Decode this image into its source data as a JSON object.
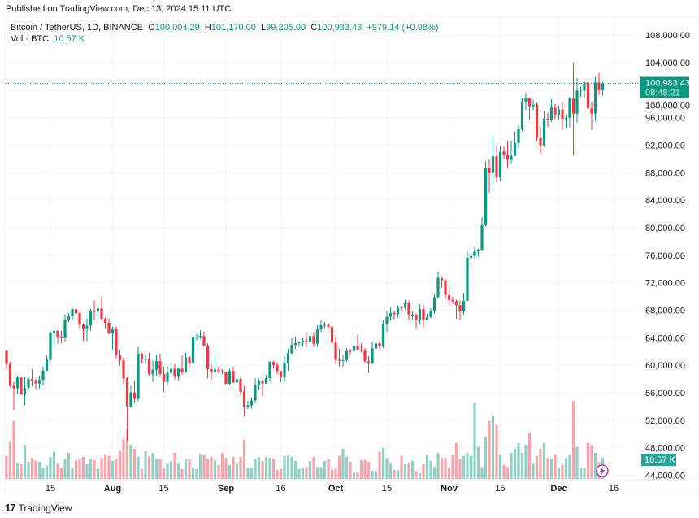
{
  "published": "Published on TradingView.com, Dec 13, 2024 15:11 UTC",
  "legend": {
    "symbol": "Bitcoin / TetherUS, 1D, BINANCE",
    "o_label": "O",
    "o": "100,004.29",
    "h_label": "H",
    "h": "101,170.00",
    "l_label": "L",
    "l": "99,205.00",
    "c_label": "C",
    "c": "100,983.43",
    "change": "+979.14 (+0.98%)",
    "vol_label": "Vol · BTC",
    "vol": "10.57 K"
  },
  "price_label": {
    "price": "100,983.43",
    "countdown": "08:48:21"
  },
  "volume_label": "10.57 K",
  "footer_logo": "TradingView",
  "colors": {
    "up": "#089981",
    "down": "#f23645"
  },
  "icons": {
    "lightning": "lightning-icon",
    "logo": "tradingview-logo-icon"
  },
  "chart_data": {
    "type": "candlestick",
    "interval": "1D",
    "date_range": [
      "2024-07-03",
      "2024-12-13"
    ],
    "ylim": [
      44000,
      108000
    ],
    "yticks": [
      "108,000.00",
      "104,000.00",
      "100,000.00",
      "96,000.00",
      "92,000.00",
      "88,000.00",
      "84,000.00",
      "80,000.00",
      "76,000.00",
      "72,000.00",
      "68,000.00",
      "64,000.00",
      "60,000.00",
      "56,000.00",
      "52,000.00",
      "48,000.00",
      "44,000.00"
    ],
    "xticks": [
      {
        "label": "15",
        "date": "2024-07-15"
      },
      {
        "label": "Aug",
        "date": "2024-08-01"
      },
      {
        "label": "15",
        "date": "2024-08-15"
      },
      {
        "label": "Sep",
        "date": "2024-09-01"
      },
      {
        "label": "16",
        "date": "2024-09-16"
      },
      {
        "label": "Oct",
        "date": "2024-10-01"
      },
      {
        "label": "15",
        "date": "2024-10-15"
      },
      {
        "label": "Nov",
        "date": "2024-11-01"
      },
      {
        "label": "15",
        "date": "2024-11-15"
      },
      {
        "label": "Dec",
        "date": "2024-12-01"
      },
      {
        "label": "16",
        "date": "2024-12-16"
      }
    ],
    "first_open": 62100,
    "close": [
      60200,
      57000,
      56650,
      58200,
      55850,
      56700,
      57980,
      57700,
      57350,
      57900,
      59200,
      60800,
      64700,
      65000,
      64100,
      63950,
      66650,
      67150,
      68150,
      67550,
      65900,
      65350,
      65750,
      67900,
      67800,
      68250,
      66750,
      66180,
      64620,
      65350,
      61500,
      60700,
      58100,
      54000,
      56030,
      55120,
      61700,
      60880,
      60940,
      58710,
      59350,
      60600,
      58740,
      57560,
      58870,
      59480,
      58440,
      59490,
      59000,
      61160,
      60380,
      64090,
      64180,
      64250,
      62830,
      59420,
      59030,
      59380,
      59120,
      58970,
      57300,
      59130,
      57480,
      57970,
      56160,
      53960,
      54160,
      54870,
      57050,
      57640,
      57340,
      58130,
      60500,
      60000,
      59130,
      58210,
      60310,
      61760,
      62950,
      63200,
      63350,
      63580,
      63330,
      64260,
      63140,
      65180,
      65800,
      65880,
      65600,
      63300,
      60800,
      60650,
      60750,
      62080,
      62060,
      62820,
      62220,
      62130,
      60580,
      60270,
      62450,
      63190,
      62850,
      66050,
      67040,
      67610,
      67400,
      68380,
      68360,
      69000,
      67370,
      67370,
      66650,
      68160,
      66600,
      67010,
      67930,
      69900,
      72720,
      72340,
      70220,
      69490,
      69310,
      68740,
      67800,
      69360,
      75640,
      75900,
      76540,
      76680,
      80370,
      88700,
      87950,
      90380,
      87310,
      91060,
      90580,
      89850,
      90460,
      92310,
      94290,
      98350,
      98890,
      97670,
      97900,
      93010,
      91970,
      95860,
      95640,
      97460,
      96410,
      97190,
      95840,
      96000,
      98770,
      96590,
      99920,
      99920,
      101110,
      97350,
      96590,
      101130,
      100004.29,
      100983.43
    ],
    "high": [
      62300,
      60500,
      57600,
      58500,
      58300,
      58300,
      58300,
      59400,
      58000,
      58500,
      59800,
      61400,
      64900,
      65300,
      65100,
      65000,
      67400,
      67600,
      68300,
      68400,
      67800,
      66100,
      66800,
      68200,
      69400,
      68300,
      70000,
      66900,
      66800,
      65600,
      65600,
      62200,
      61100,
      58300,
      57000,
      57700,
      62700,
      61800,
      61500,
      61800,
      60700,
      61500,
      61700,
      59800,
      59800,
      60200,
      60200,
      59600,
      61400,
      61800,
      61400,
      64900,
      64500,
      65000,
      64900,
      63200,
      60200,
      61200,
      59900,
      59400,
      59000,
      59500,
      59800,
      58500,
      58300,
      57000,
      54800,
      55300,
      58100,
      58000,
      57900,
      58600,
      60600,
      60600,
      60400,
      59200,
      61300,
      62400,
      63900,
      64100,
      63500,
      63900,
      64800,
      64600,
      64800,
      65800,
      66500,
      66300,
      66100,
      65600,
      64100,
      62400,
      61500,
      62500,
      62400,
      63000,
      64500,
      63200,
      62500,
      61300,
      63400,
      63500,
      63400,
      66500,
      67900,
      68400,
      67900,
      68700,
      68700,
      69500,
      69400,
      67800,
      67500,
      68800,
      68800,
      67500,
      68300,
      70300,
      73600,
      72700,
      72600,
      71600,
      70000,
      69500,
      69400,
      70500,
      76500,
      76800,
      77300,
      76900,
      81500,
      89600,
      89900,
      93300,
      91800,
      91900,
      91800,
      92600,
      92600,
      94000,
      94900,
      98900,
      99600,
      98800,
      98600,
      98200,
      94700,
      97000,
      96700,
      98700,
      98000,
      97800,
      98200,
      96400,
      99000,
      104000,
      101800,
      100500,
      101400,
      101300,
      98300,
      101900,
      102500,
      101170
    ],
    "low": [
      59400,
      56800,
      53500,
      55800,
      55700,
      54200,
      56300,
      56900,
      56500,
      56600,
      57000,
      59100,
      60600,
      62700,
      63200,
      63200,
      63400,
      66300,
      66500,
      66900,
      65400,
      63500,
      63500,
      65000,
      66600,
      66800,
      66500,
      65300,
      64500,
      62300,
      61000,
      59900,
      57200,
      49000,
      54000,
      54600,
      54800,
      60300,
      60300,
      58500,
      57600,
      58500,
      58400,
      56100,
      57100,
      58400,
      57900,
      57800,
      58600,
      58900,
      59800,
      60300,
      63600,
      63800,
      62800,
      58100,
      57800,
      58600,
      58800,
      58700,
      57200,
      57100,
      57400,
      55600,
      55700,
      52500,
      53600,
      53700,
      54600,
      56400,
      55500,
      57300,
      57700,
      59500,
      58700,
      57500,
      57600,
      59200,
      61500,
      62400,
      62700,
      62800,
      62700,
      62700,
      62700,
      62700,
      64800,
      65400,
      65400,
      62900,
      60200,
      59800,
      59800,
      60500,
      61600,
      62000,
      62100,
      61900,
      60300,
      58900,
      60100,
      62400,
      62400,
      62500,
      64800,
      66500,
      66700,
      66900,
      67800,
      68100,
      66500,
      66600,
      65300,
      66000,
      65500,
      66600,
      66800,
      67500,
      69700,
      71300,
      69700,
      68800,
      68900,
      66800,
      66600,
      67400,
      69200,
      74400,
      75500,
      75800,
      76600,
      80200,
      85100,
      86200,
      86600,
      86800,
      90000,
      88700,
      89300,
      90400,
      91500,
      94000,
      97200,
      95700,
      97100,
      92600,
      90800,
      91800,
      94600,
      95400,
      95800,
      95700,
      94200,
      94500,
      94600,
      90500,
      95200,
      99000,
      98800,
      94200,
      94200,
      95500,
      99300,
      99205
    ],
    "volume_k": [
      11.5,
      19,
      29,
      8,
      7.5,
      17,
      8.5,
      10.5,
      9,
      8.5,
      5.5,
      6.5,
      11,
      13.5,
      8,
      5.5,
      10,
      13,
      5.5,
      9.5,
      10,
      11,
      7.5,
      10,
      9.5,
      5,
      10.5,
      12,
      11.5,
      9,
      10,
      14,
      20,
      25,
      17,
      15,
      11,
      5,
      14,
      11,
      13,
      10,
      10,
      5,
      8,
      9,
      13,
      8,
      5,
      10,
      10,
      5.5,
      5,
      12.5,
      12,
      10,
      11,
      9.5,
      7,
      13,
      10.5,
      7,
      11,
      8,
      11,
      19.5,
      5.5,
      5.5,
      10,
      11,
      9,
      11,
      10.5,
      10,
      4.5,
      5,
      11.5,
      12,
      11,
      9,
      5,
      5.5,
      6,
      9,
      11,
      6,
      6,
      9,
      10,
      4.5,
      5,
      11.5,
      15,
      11,
      8.5,
      3,
      3.5,
      9.5,
      9.5,
      8.5,
      4,
      4,
      13.5,
      15.5,
      10.5,
      8,
      4.5,
      4.5,
      11.5,
      7.5,
      8,
      9,
      4,
      3,
      7.5,
      12,
      9,
      6,
      13,
      10.5,
      10.5,
      5.5,
      12,
      18,
      10,
      11.5,
      13,
      11.5,
      38,
      16,
      6,
      21,
      29,
      32,
      27,
      12,
      7,
      6,
      13,
      15,
      18,
      13,
      17,
      23,
      8,
      11.5,
      15,
      18,
      10.5,
      10,
      12.5,
      5.5,
      7,
      10.5,
      12,
      39,
      16,
      5.5,
      5.5,
      18,
      17,
      13,
      8.5,
      10.57
    ],
    "last_price": 100983.43
  }
}
